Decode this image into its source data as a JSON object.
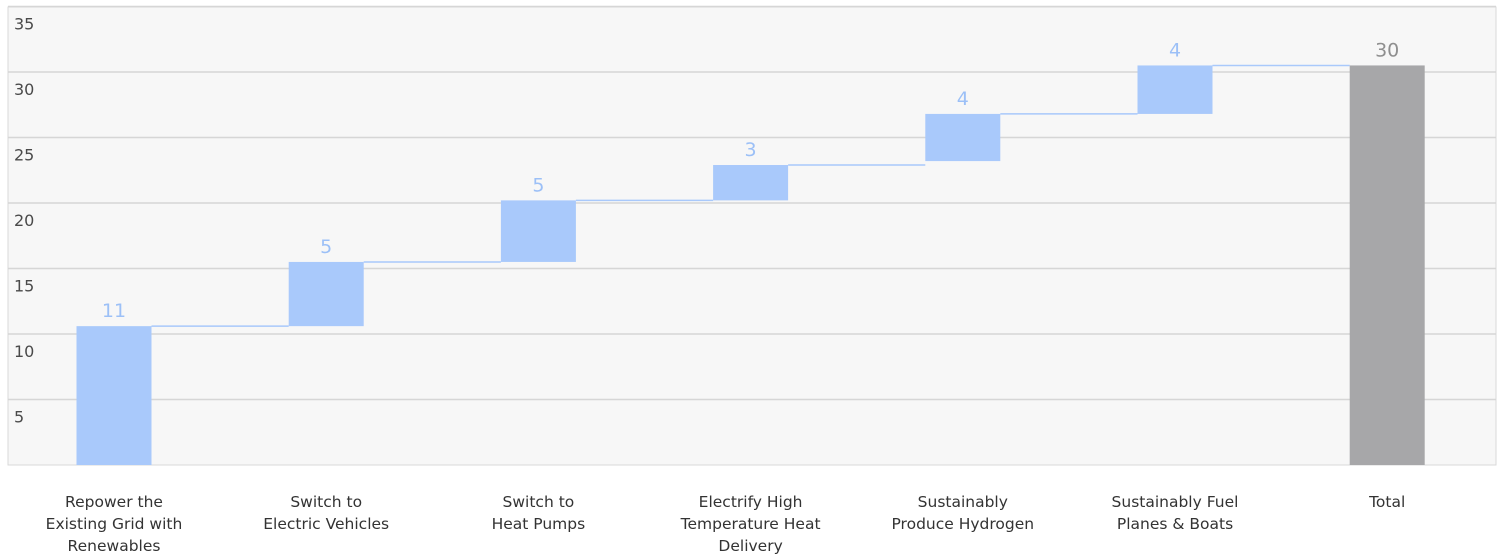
{
  "chart_data": {
    "type": "bar",
    "subtype": "waterfall",
    "categories": [
      [
        "Repower the",
        "Existing Grid with",
        "Renewables"
      ],
      [
        "Switch to",
        "Electric Vehicles"
      ],
      [
        "Switch to",
        "Heat Pumps"
      ],
      [
        "Electrify High",
        "Temperature Heat",
        "Delivery"
      ],
      [
        "Sustainably",
        "Produce Hydrogen"
      ],
      [
        "Sustainably Fuel",
        "Planes & Boats"
      ],
      [
        "Total"
      ]
    ],
    "values": [
      11,
      5,
      5,
      3,
      4,
      4,
      30
    ],
    "bar_kinds": [
      "step",
      "step",
      "step",
      "step",
      "step",
      "step",
      "total"
    ],
    "offsets": [
      0,
      10.6,
      15.5,
      20.2,
      23.2,
      26.8,
      0
    ],
    "heights": [
      10.6,
      4.9,
      4.7,
      2.7,
      3.6,
      3.7,
      30.5
    ],
    "data_labels": [
      "11",
      "5",
      "5",
      "3",
      "4",
      "4",
      "30"
    ],
    "y_ticks": [
      5,
      10,
      15,
      20,
      25,
      30,
      35
    ],
    "ylim": [
      0,
      35
    ],
    "grid": true,
    "title": "",
    "xlabel": "",
    "ylabel": "",
    "colors": {
      "step": "#a9c9fb",
      "total": "#a7a7a9",
      "step_label": "#9cc0f7",
      "total_label": "#8f8f8f"
    }
  }
}
